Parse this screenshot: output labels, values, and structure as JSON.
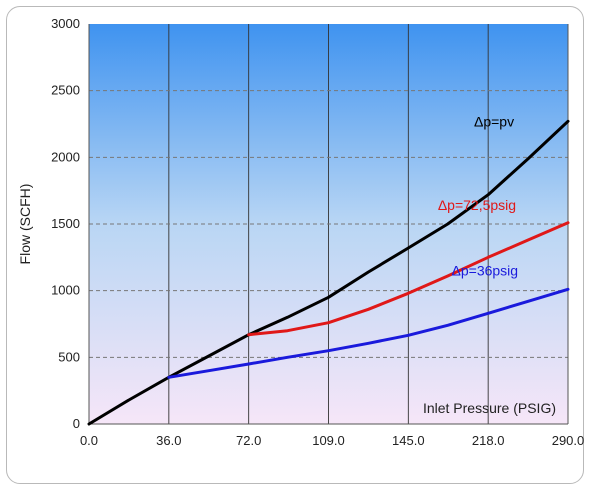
{
  "colors": {
    "bg_top": "#3f93f0",
    "bg_mid": "#b9d6f4",
    "bg_bottom": "#f6e6f8",
    "grid_vertical": "#333333",
    "grid_horizontal": "#777777",
    "frame_border": "#b9b9b9"
  },
  "chart_data": {
    "type": "line",
    "title": "",
    "xlabel": "Inlet Pressure (PSIG)",
    "ylabel": "Flow (SCFH)",
    "x_tick_labels": [
      "0.0",
      "36.0",
      "72.0",
      "109.0",
      "145.0",
      "218.0",
      "290.0"
    ],
    "y_tick_labels": [
      "0",
      "500",
      "1000",
      "1500",
      "2000",
      "2500",
      "3000"
    ],
    "ylim": [
      0,
      3000
    ],
    "x_scale": "categorical (equally spaced tick labels)",
    "grid": {
      "vertical": "solid",
      "horizontal": "dashed"
    },
    "series": [
      {
        "name": "Δp=pv",
        "color": "#000000",
        "points": [
          [
            0,
            0
          ],
          [
            18,
            180
          ],
          [
            36,
            350
          ],
          [
            54,
            510
          ],
          [
            72,
            670
          ],
          [
            90,
            800
          ],
          [
            109,
            950
          ],
          [
            127,
            1140
          ],
          [
            145,
            1320
          ],
          [
            181,
            1500
          ],
          [
            218,
            1720
          ],
          [
            254,
            1990
          ],
          [
            290,
            2270
          ]
        ]
      },
      {
        "name": "Δp=72,5psig",
        "color": "#e01818",
        "points": [
          [
            72,
            670
          ],
          [
            90,
            700
          ],
          [
            109,
            760
          ],
          [
            127,
            860
          ],
          [
            145,
            980
          ],
          [
            181,
            1110
          ],
          [
            218,
            1250
          ],
          [
            254,
            1380
          ],
          [
            290,
            1510
          ]
        ]
      },
      {
        "name": "Δp=36psig",
        "color": "#1a1adc",
        "points": [
          [
            36,
            350
          ],
          [
            54,
            400
          ],
          [
            72,
            450
          ],
          [
            90,
            500
          ],
          [
            109,
            550
          ],
          [
            127,
            605
          ],
          [
            145,
            665
          ],
          [
            181,
            740
          ],
          [
            218,
            830
          ],
          [
            254,
            920
          ],
          [
            290,
            1010
          ]
        ]
      }
    ]
  }
}
